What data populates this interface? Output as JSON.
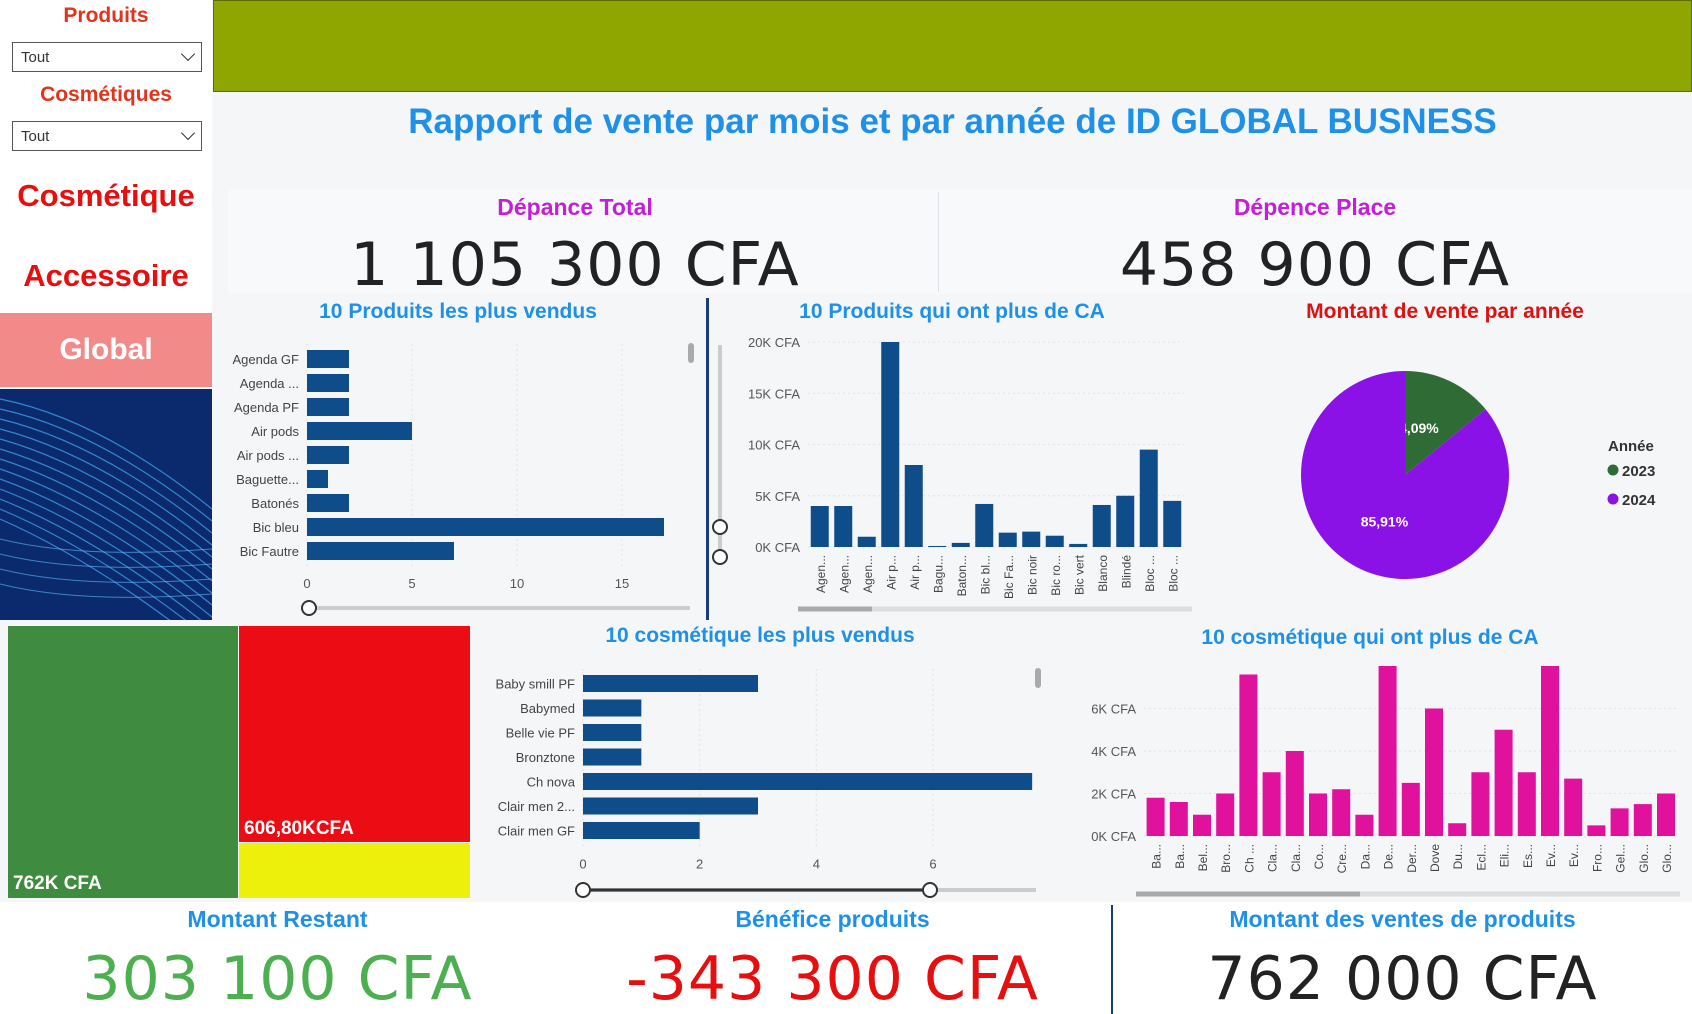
{
  "filters": {
    "produits_label": "Produits",
    "produits_value": "Tout",
    "cosmetiques_label": "Cosmétiques",
    "cosmetiques_value": "Tout"
  },
  "nav": {
    "cosmetique": "Cosmétique",
    "accessoire": "Accessoire",
    "global": "Global"
  },
  "header": {
    "title": "Rapport de vente par mois et par année de ID GLOBAL BUSNESS"
  },
  "kpis": {
    "depance_total_label": "Dépance Total",
    "depance_total_value": "1 105 300 CFA",
    "depence_place_label": "Dépence Place",
    "depence_place_value": "458 900 CFA",
    "montant_restant_label": "Montant Restant",
    "montant_restant_value": "303 100 CFA",
    "benefice_label": "Bénéfice produits",
    "benefice_value": "-343 300 CFA",
    "ventes_produits_label": "Montant des ventes de produits",
    "ventes_produits_value": "762 000 CFA"
  },
  "colors": {
    "accent_blue": "#1e90e8",
    "bar_blue": "#0f4c8a",
    "magenta": "#e0119c",
    "green_2023": "#2f6b35",
    "purple_2024": "#8b12e6",
    "red_text": "#e60e0e",
    "green_text": "#4caf50",
    "banner": "#8fa500"
  },
  "treemap": {
    "green_label": "762K CFA",
    "red_label": "606,80KCFA"
  },
  "chart_data": [
    {
      "id": "top10-produits-vendus",
      "type": "bar",
      "orientation": "horizontal",
      "title": "10 Produits les plus vendus",
      "categories": [
        "Agenda GF",
        "Agenda ...",
        "Agenda PF",
        "Air pods",
        "Air pods ...",
        "Baguette...",
        "Batonés",
        "Bic bleu",
        "Bic Fautre"
      ],
      "values": [
        2,
        2,
        2,
        5,
        2,
        1,
        2,
        17,
        7
      ],
      "xticks": [
        "0",
        "5",
        "10",
        "15"
      ],
      "xlim": [
        0,
        17
      ]
    },
    {
      "id": "top10-produits-ca",
      "type": "bar",
      "title": "10 Produits qui ont plus de CA",
      "categories": [
        "Agen...",
        "Agen...",
        "Agen...",
        "Air p...",
        "Air p...",
        "Bagu...",
        "Baton...",
        "Bic bl...",
        "Bic Fa...",
        "Bic noir",
        "Bic ro...",
        "Bic vert",
        "Blanco",
        "Blindé",
        "Bloc ...",
        "Bloc ..."
      ],
      "values": [
        4000,
        4000,
        1000,
        20000,
        8000,
        100,
        400,
        4200,
        1400,
        1500,
        1100,
        300,
        4100,
        5000,
        9500,
        4500
      ],
      "yticks": [
        "0K CFA",
        "5K CFA",
        "10K CFA",
        "15K CFA",
        "20K CFA"
      ],
      "ylim": [
        0,
        20000
      ]
    },
    {
      "id": "montant-vente-annee",
      "type": "pie",
      "title": "Montant de vente par année",
      "legend_title": "Année",
      "labels": [
        "2023",
        "2024"
      ],
      "values": [
        14.09,
        85.91
      ],
      "value_labels": [
        "14,09%",
        "85,91%"
      ],
      "legend": "right"
    },
    {
      "id": "top10-cosmetique-vendus",
      "type": "bar",
      "orientation": "horizontal",
      "title": "10 cosmétique les plus vendus",
      "categories": [
        "Baby smill PF",
        "Babymed",
        "Belle vie PF",
        "Bronztone",
        "Ch nova",
        "Clair men 2...",
        "Clair men GF"
      ],
      "values": [
        3,
        1,
        1,
        1,
        7.7,
        3,
        2
      ],
      "xticks": [
        "0",
        "2",
        "4",
        "6"
      ],
      "xlim": [
        0,
        7.8
      ]
    },
    {
      "id": "top10-cosmetique-ca",
      "type": "bar",
      "title": "10 cosmétique qui ont plus de CA",
      "categories": [
        "Ba...",
        "Ba...",
        "Bel...",
        "Bro...",
        "Ch ...",
        "Cla...",
        "Cla...",
        "Co...",
        "Cre...",
        "Da...",
        "De...",
        "Der...",
        "Dove",
        "Du...",
        "Ecl...",
        "Eli...",
        "Es...",
        "Ev...",
        "Ev...",
        "Fro...",
        "Gel...",
        "Glo...",
        "Glo..."
      ],
      "values": [
        1800,
        1600,
        1000,
        2000,
        7600,
        3000,
        4000,
        2000,
        2200,
        1000,
        8000,
        2500,
        6000,
        600,
        3000,
        5000,
        3000,
        8000,
        2700,
        500,
        1300,
        1500,
        2000
      ],
      "yticks": [
        "0K CFA",
        "2K CFA",
        "4K CFA",
        "6K CFA"
      ],
      "ylim": [
        0,
        8000
      ]
    }
  ]
}
